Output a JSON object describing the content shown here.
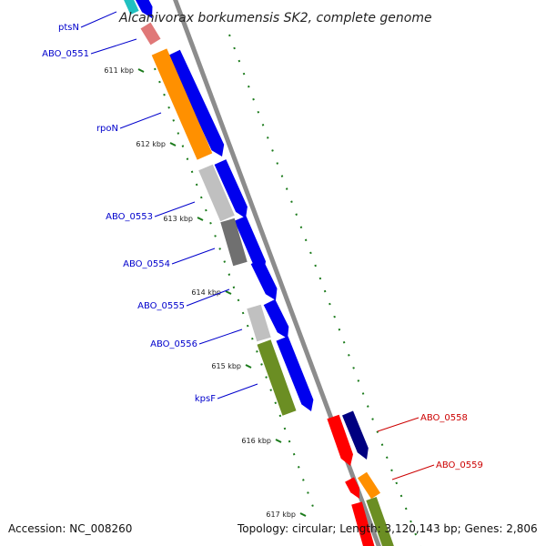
{
  "title": "Alcanivorax borkumensis SK2, complete genome",
  "footer": {
    "accession": "Accession: NC_008260",
    "topology": "Topology: circular; Length: 3,120,143 bp; Genes: 2,806"
  },
  "colors": {
    "forward_label": "#0000cc",
    "reverse_label": "#cc0000",
    "backbone": "#8c8c8c",
    "tick": "#1a7a1a",
    "cds_blue": "#0000ee",
    "cds_navy": "#000080",
    "cds_orange": "#ff9000",
    "cds_red": "#ff0000",
    "cds_olive": "#6b8e23",
    "cds_lightgray": "#c0c0c0",
    "cds_darkgray": "#707070",
    "cds_pink": "#e07878"
  },
  "ticks": [
    "611 kbp",
    "612 kbp",
    "613 kbp",
    "614 kbp",
    "615 kbp",
    "616 kbp",
    "617 kbp"
  ],
  "gene_labels": [
    {
      "name": "ptsN",
      "strand": "forward"
    },
    {
      "name": "ABO_0551",
      "strand": "forward"
    },
    {
      "name": "rpoN",
      "strand": "forward"
    },
    {
      "name": "ABO_0553",
      "strand": "forward"
    },
    {
      "name": "ABO_0554",
      "strand": "forward"
    },
    {
      "name": "ABO_0555",
      "strand": "forward"
    },
    {
      "name": "ABO_0556",
      "strand": "forward"
    },
    {
      "name": "kpsF",
      "strand": "forward"
    },
    {
      "name": "ABO_0558",
      "strand": "reverse"
    },
    {
      "name": "ABO_0559",
      "strand": "reverse"
    }
  ]
}
